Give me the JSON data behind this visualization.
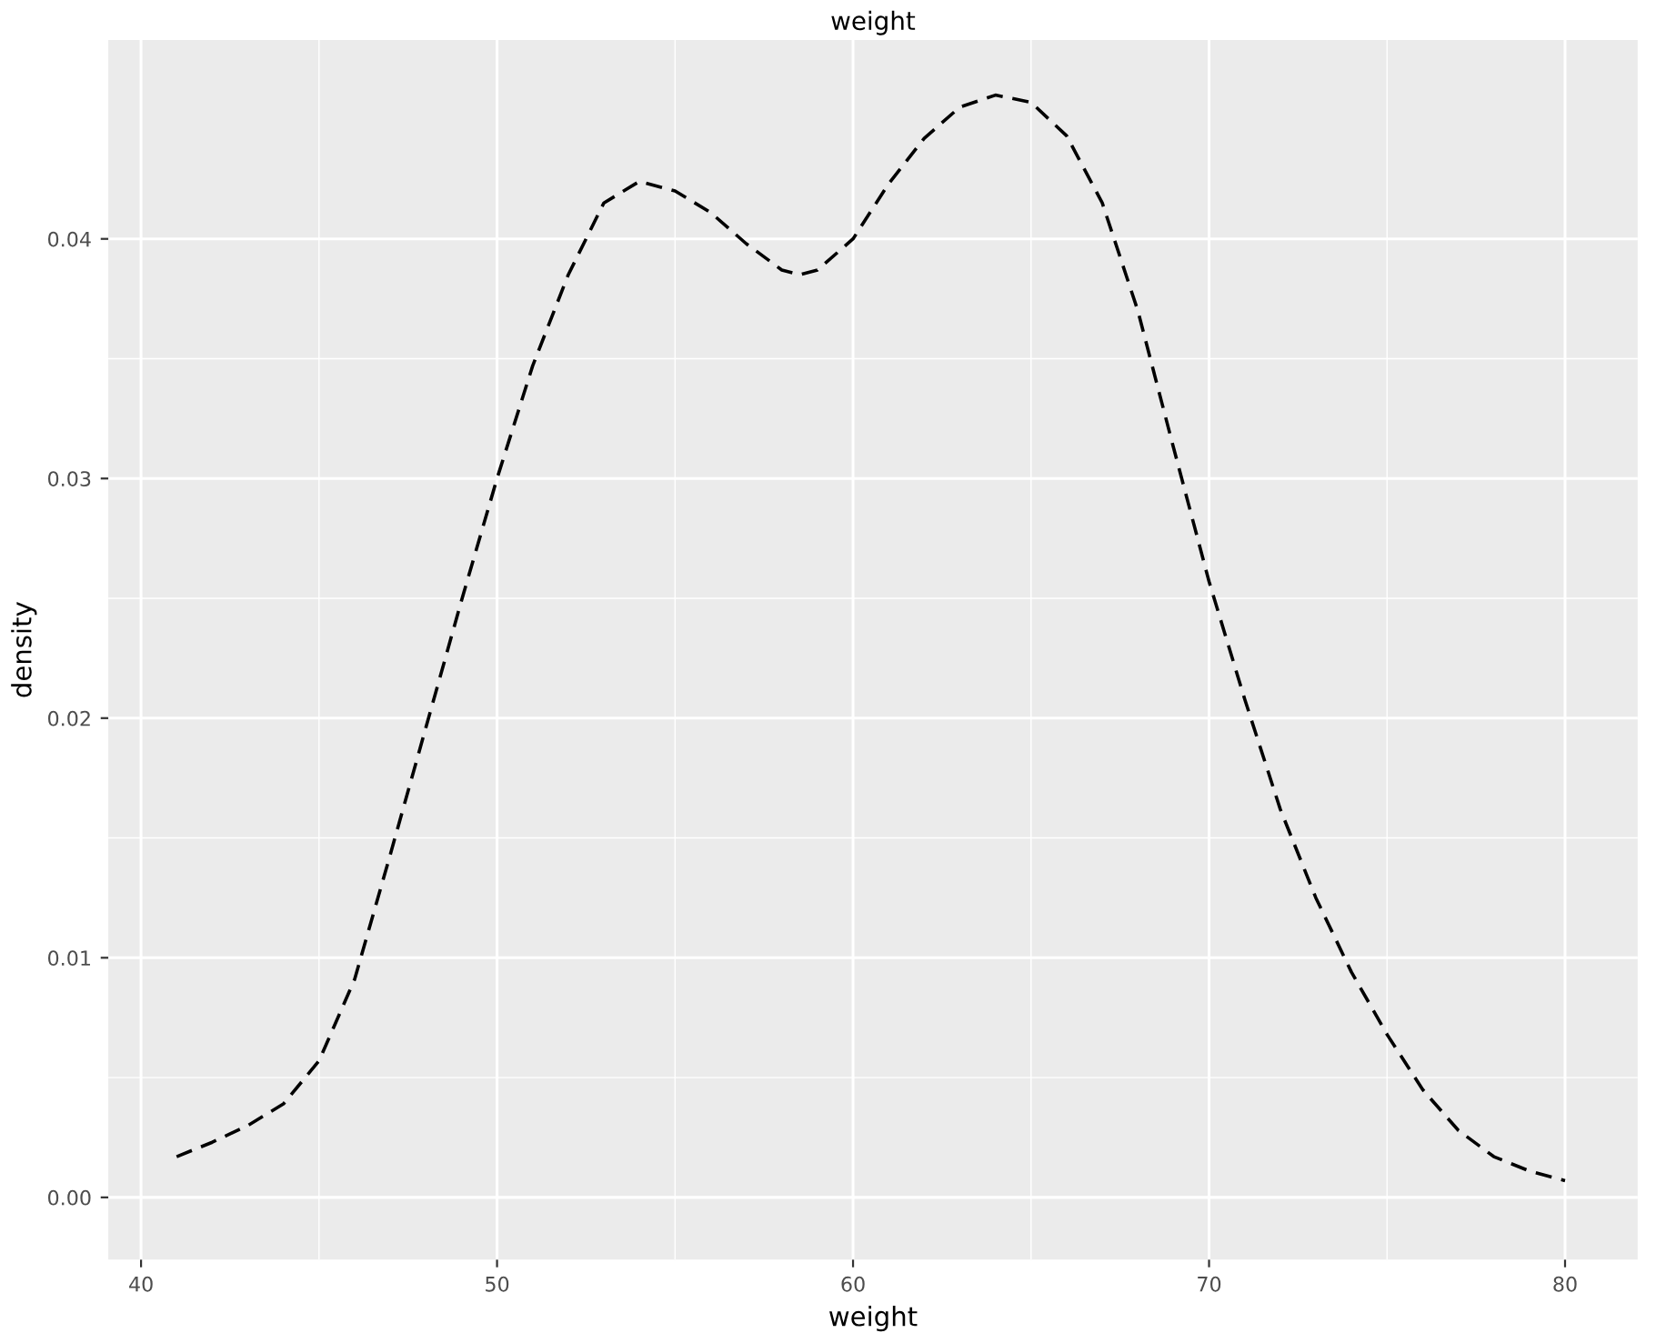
{
  "chart_data": {
    "type": "line",
    "title": "weight",
    "xlabel": "weight",
    "ylabel": "density",
    "xlim": [
      39.08,
      82.04
    ],
    "ylim": [
      -0.0026,
      0.0483
    ],
    "xticks": [
      40,
      50,
      60,
      70,
      80
    ],
    "yticks": [
      {
        "value": 0,
        "label": "0.00"
      },
      {
        "value": 0.01,
        "label": "0.01"
      },
      {
        "value": 0.02,
        "label": "0.02"
      },
      {
        "value": 0.03,
        "label": "0.03"
      },
      {
        "value": 0.04,
        "label": "0.04"
      }
    ],
    "grid": true,
    "line_style": "dashed",
    "marker": "none",
    "series": [
      {
        "color": "#000000",
        "x": [
          41,
          42,
          43,
          44,
          45,
          46,
          47,
          48,
          49,
          50,
          51,
          52,
          53,
          54,
          55,
          56,
          57,
          58,
          58.5,
          59,
          60,
          61,
          62,
          63,
          64,
          65,
          66,
          67,
          68,
          69,
          70,
          71,
          72,
          73,
          74,
          75,
          76,
          77,
          78,
          79,
          80
        ],
        "values": [
          0.0017,
          0.0023,
          0.003,
          0.0039,
          0.0057,
          0.0091,
          0.0143,
          0.0196,
          0.0249,
          0.03,
          0.0347,
          0.0385,
          0.0415,
          0.0424,
          0.042,
          0.0411,
          0.0398,
          0.0387,
          0.0385,
          0.0387,
          0.04,
          0.0423,
          0.0442,
          0.0455,
          0.046,
          0.0457,
          0.0443,
          0.0415,
          0.037,
          0.0313,
          0.0257,
          0.0208,
          0.0162,
          0.0125,
          0.0094,
          0.0068,
          0.0045,
          0.0028,
          0.0017,
          0.0011,
          0.0007
        ]
      }
    ]
  }
}
